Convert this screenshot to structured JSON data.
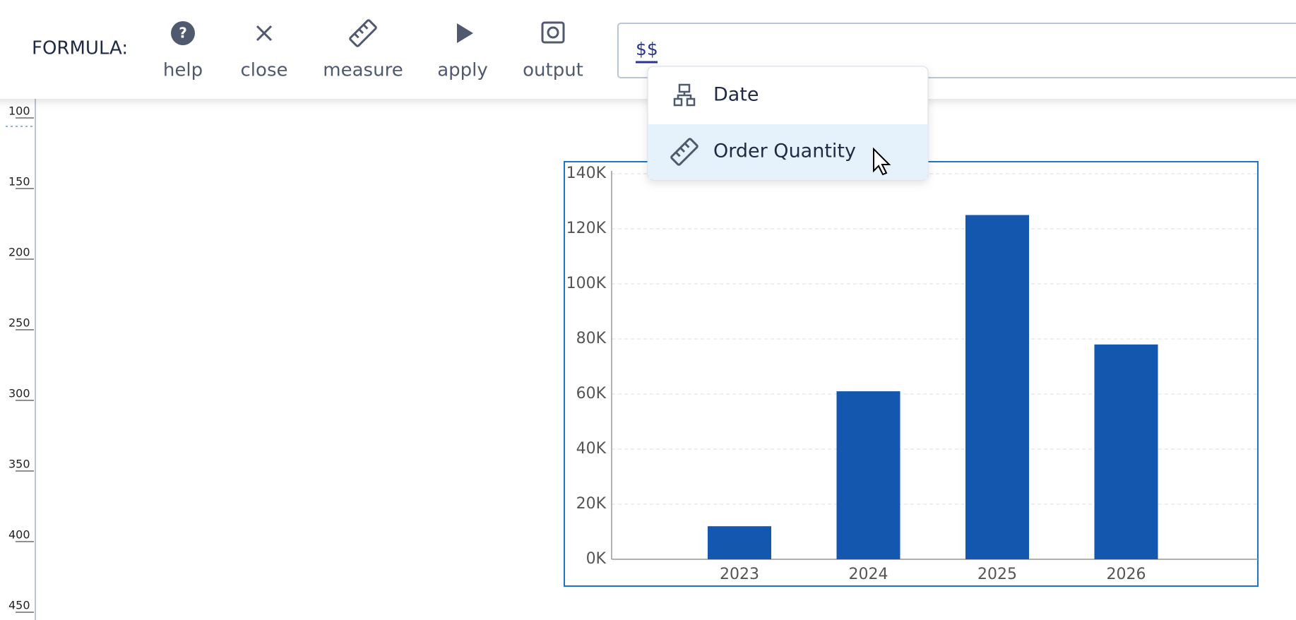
{
  "toolbar": {
    "label": "FORMULA:",
    "buttons": [
      "help",
      "close",
      "measure",
      "apply",
      "output"
    ]
  },
  "formula_input": {
    "text": "$$"
  },
  "dropdown": {
    "items": [
      "Date",
      "Order Quantity"
    ]
  },
  "ruler": {
    "labels": [
      100,
      150,
      200,
      250,
      300,
      350,
      400,
      450
    ]
  },
  "chart_data": {
    "type": "bar",
    "categories": [
      "2023",
      "2024",
      "2025",
      "2026"
    ],
    "values": [
      12000,
      61000,
      125000,
      78000
    ],
    "color": "#1357ae",
    "ylim": [
      0,
      140000
    ],
    "yticks": [
      {
        "value": 0,
        "label": "0K"
      },
      {
        "value": 20000,
        "label": "20K"
      },
      {
        "value": 40000,
        "label": "40K"
      },
      {
        "value": 60000,
        "label": "60K"
      },
      {
        "value": 80000,
        "label": "80K"
      },
      {
        "value": 100000,
        "label": "100K"
      },
      {
        "value": 120000,
        "label": "120K"
      },
      {
        "value": 140000,
        "label": "140K"
      }
    ],
    "grid": true
  }
}
